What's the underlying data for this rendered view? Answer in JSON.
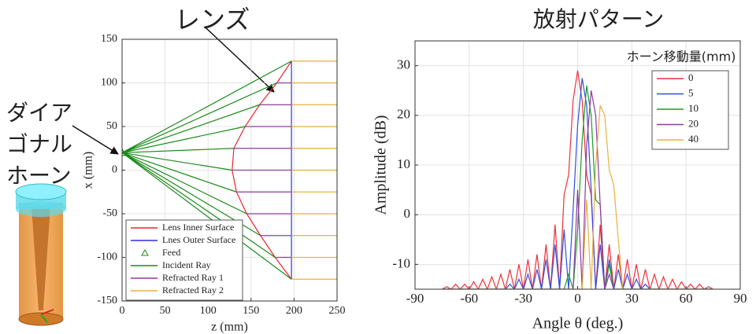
{
  "chart_data": [
    {
      "type": "line",
      "annotations": [
        "レンズ",
        "ダイア",
        "ゴナル",
        "ホーン"
      ],
      "xlabel": "z (mm)",
      "ylabel": "x (mm)",
      "xlim": [
        0,
        250
      ],
      "xticks": [
        0,
        50,
        100,
        150,
        200,
        250
      ],
      "ylim": [
        -150,
        150
      ],
      "yticks": [
        -150,
        -100,
        -50,
        0,
        50,
        100,
        150
      ],
      "grid": true,
      "legend": "lower left",
      "series": [
        {
          "name": "Lens Inner Surface",
          "color": "#e8262b",
          "x": [
            197,
            180,
            160,
            143,
            130,
            128,
            133,
            145,
            161,
            178,
            197
          ],
          "values": [
            125,
            100,
            75,
            50,
            25,
            0,
            -25,
            -50,
            -75,
            -100,
            -125
          ]
        },
        {
          "name": "Lnes Outer Surface",
          "color": "#2f2fe0",
          "x": [
            197,
            197
          ],
          "values": [
            125,
            -125
          ]
        },
        {
          "name": "Feed",
          "color": "#1a8a1a",
          "marker": "triangle",
          "x": [
            0
          ],
          "values": [
            20
          ]
        },
        {
          "name": "Incident Ray",
          "color": "#1a8a1a",
          "x": [
            0,
            197,
            null,
            0,
            180,
            null,
            0,
            160,
            null,
            0,
            143,
            null,
            0,
            130,
            null,
            0,
            128,
            null,
            0,
            133,
            null,
            0,
            145,
            null,
            0,
            161,
            null,
            0,
            178,
            null,
            0,
            197
          ],
          "values": [
            20,
            125,
            null,
            20,
            100,
            null,
            20,
            75,
            null,
            20,
            50,
            null,
            20,
            25,
            null,
            20,
            0,
            null,
            20,
            -25,
            null,
            20,
            -50,
            null,
            20,
            -75,
            null,
            20,
            -100,
            null,
            20,
            -125
          ]
        },
        {
          "name": "Refracted Ray 1",
          "color": "#8e3aa0",
          "x": [
            197,
            197,
            null,
            180,
            197,
            null,
            160,
            197,
            null,
            143,
            197,
            null,
            130,
            197,
            null,
            128,
            197,
            null,
            133,
            197,
            null,
            145,
            197,
            null,
            161,
            197,
            null,
            178,
            197,
            null,
            197,
            197
          ],
          "values": [
            125,
            125,
            null,
            100,
            100,
            null,
            75,
            75,
            null,
            50,
            50,
            null,
            25,
            25,
            null,
            0,
            0,
            null,
            -25,
            -25,
            null,
            -50,
            -50,
            null,
            -75,
            -75,
            null,
            -100,
            -100,
            null,
            -125,
            -125
          ]
        },
        {
          "name": "Refracted Ray 2",
          "color": "#e8b040",
          "x": [
            197,
            250,
            null,
            197,
            250,
            null,
            197,
            250,
            null,
            197,
            250,
            null,
            197,
            250,
            null,
            197,
            250,
            null,
            197,
            250,
            null,
            197,
            250,
            null,
            197,
            250,
            null,
            197,
            250,
            null,
            197,
            250
          ],
          "values": [
            125,
            125,
            null,
            100,
            100,
            null,
            75,
            75,
            null,
            50,
            50,
            null,
            25,
            25,
            null,
            0,
            0,
            null,
            -25,
            -25,
            null,
            -50,
            -50,
            null,
            -75,
            -75,
            null,
            -100,
            -100,
            null,
            -125,
            -125
          ]
        }
      ]
    },
    {
      "type": "line",
      "title": "放射パターン",
      "xlabel": "Angle θ (deg.)",
      "ylabel": "Amplitude (dB)",
      "legend_title": "ホーン移動量(mm)",
      "legend": "upper right",
      "xlim": [
        -90,
        90
      ],
      "xticks": [
        -90,
        -60,
        -30,
        0,
        30,
        60,
        90
      ],
      "ylim": [
        -15,
        35
      ],
      "yticks": [
        -10,
        0,
        10,
        20,
        30
      ],
      "grid": true,
      "x": [
        -75,
        -72.5,
        -70,
        -67.5,
        -65,
        -62.5,
        -60,
        -57.5,
        -55,
        -52.5,
        -50,
        -47.5,
        -45,
        -42.5,
        -40,
        -37.5,
        -35,
        -32.5,
        -30,
        -27.5,
        -25,
        -22.5,
        -20,
        -17.5,
        -15,
        -12.5,
        -10,
        -7.5,
        -5,
        -2.5,
        0,
        2.5,
        5,
        7.5,
        10,
        12.5,
        15,
        17.5,
        20,
        22.5,
        25,
        27.5,
        30,
        32.5,
        35,
        37.5,
        40,
        42.5,
        45,
        47.5,
        50,
        52.5,
        55,
        57.5,
        60,
        62.5,
        65,
        67.5,
        70,
        72.5,
        75
      ],
      "series": [
        {
          "name": "0",
          "color": "#f0303a",
          "values": [
            -15,
            -14.5,
            -15,
            -14,
            -15,
            -14,
            -15,
            -13.5,
            -15,
            -13,
            -15,
            -12.5,
            -15,
            -12,
            -15,
            -11,
            -15,
            -10,
            -15,
            -9,
            -15,
            -8,
            -15,
            -6,
            -15,
            -2,
            -15,
            4,
            8,
            23,
            29,
            23,
            8,
            4,
            -15,
            -2,
            -15,
            -6,
            -15,
            -8,
            -15,
            -9,
            -15,
            -10,
            -15,
            -11,
            -15,
            -12,
            -15,
            -12.5,
            -15,
            -13,
            -15,
            -13.5,
            -15,
            -14,
            -15,
            -14,
            -15,
            -14.5,
            -15
          ]
        },
        {
          "name": "5",
          "color": "#2f4fe0",
          "values": [
            -15,
            -15,
            -15,
            -15,
            -15,
            -15,
            -15,
            -15,
            -15,
            -15,
            -15,
            -15,
            -15,
            -15,
            -15,
            -14,
            -15,
            -13,
            -15,
            -12,
            -15,
            -11,
            -15,
            -9,
            -15,
            -6,
            -15,
            -3,
            -15,
            1,
            18,
            27.5,
            22,
            5,
            -15,
            -6,
            -15,
            -9,
            -15,
            -11,
            -15,
            -12,
            -15,
            -13,
            -15,
            -14,
            -15,
            -15,
            -15,
            -15,
            -15,
            -15,
            -15,
            -15,
            -15,
            -15,
            -15,
            -15,
            -15,
            -15,
            -15
          ]
        },
        {
          "name": "10",
          "color": "#1e9a2a",
          "values": [
            -15,
            -15,
            -15,
            -15,
            -15,
            -15,
            -15,
            -15,
            -15,
            -15,
            -15,
            -15,
            -15,
            -15,
            -15,
            -15,
            -15,
            -15,
            -15,
            -15,
            -15,
            -15,
            -15,
            -15,
            -15,
            -15,
            -15,
            -15,
            -12,
            -15,
            -3,
            15,
            26,
            20,
            3,
            2,
            -15,
            -10,
            -15,
            -15,
            -15,
            -15,
            -15,
            -15,
            -15,
            -15,
            -15,
            -15,
            -15,
            -15,
            -15,
            -15,
            -15,
            -15,
            -15,
            -15,
            -15,
            -15,
            -15,
            -15,
            -15
          ]
        },
        {
          "name": "20",
          "color": "#8e3aa0",
          "values": [
            -15,
            -15,
            -15,
            -15,
            -15,
            -15,
            -15,
            -15,
            -15,
            -15,
            -15,
            -15,
            -15,
            -15,
            -15,
            -15,
            -15,
            -15,
            -15,
            -15,
            -15,
            -15,
            -15,
            -15,
            -15,
            -15,
            -15,
            -15,
            -15,
            -15,
            5,
            -15,
            14,
            25,
            20,
            2,
            -15,
            -12,
            -15,
            -15,
            -15,
            -15,
            -15,
            -15,
            -15,
            -15,
            -15,
            -15,
            -15,
            -15,
            -15,
            -15,
            -15,
            -15,
            -15,
            -15,
            -15,
            -15,
            -15,
            -15,
            -15
          ]
        },
        {
          "name": "40",
          "color": "#e8b040",
          "values": [
            -15,
            -15,
            -15,
            -15,
            -15,
            -15,
            -15,
            -15,
            -15,
            -15,
            -15,
            -15,
            -15,
            -15,
            -15,
            -15,
            -15,
            -15,
            -15,
            -15,
            -15,
            -15,
            -15,
            -15,
            -15,
            -15,
            -15,
            -15,
            -15,
            -15,
            -15,
            -15,
            3,
            -15,
            10,
            22,
            20,
            9,
            6,
            -5,
            -15,
            -15,
            -15,
            -15,
            -15,
            -15,
            -15,
            -15,
            -15,
            -15,
            -15,
            -15,
            -15,
            -15,
            -15,
            -15,
            -15,
            -15,
            -15,
            -15,
            -15
          ]
        }
      ]
    }
  ]
}
